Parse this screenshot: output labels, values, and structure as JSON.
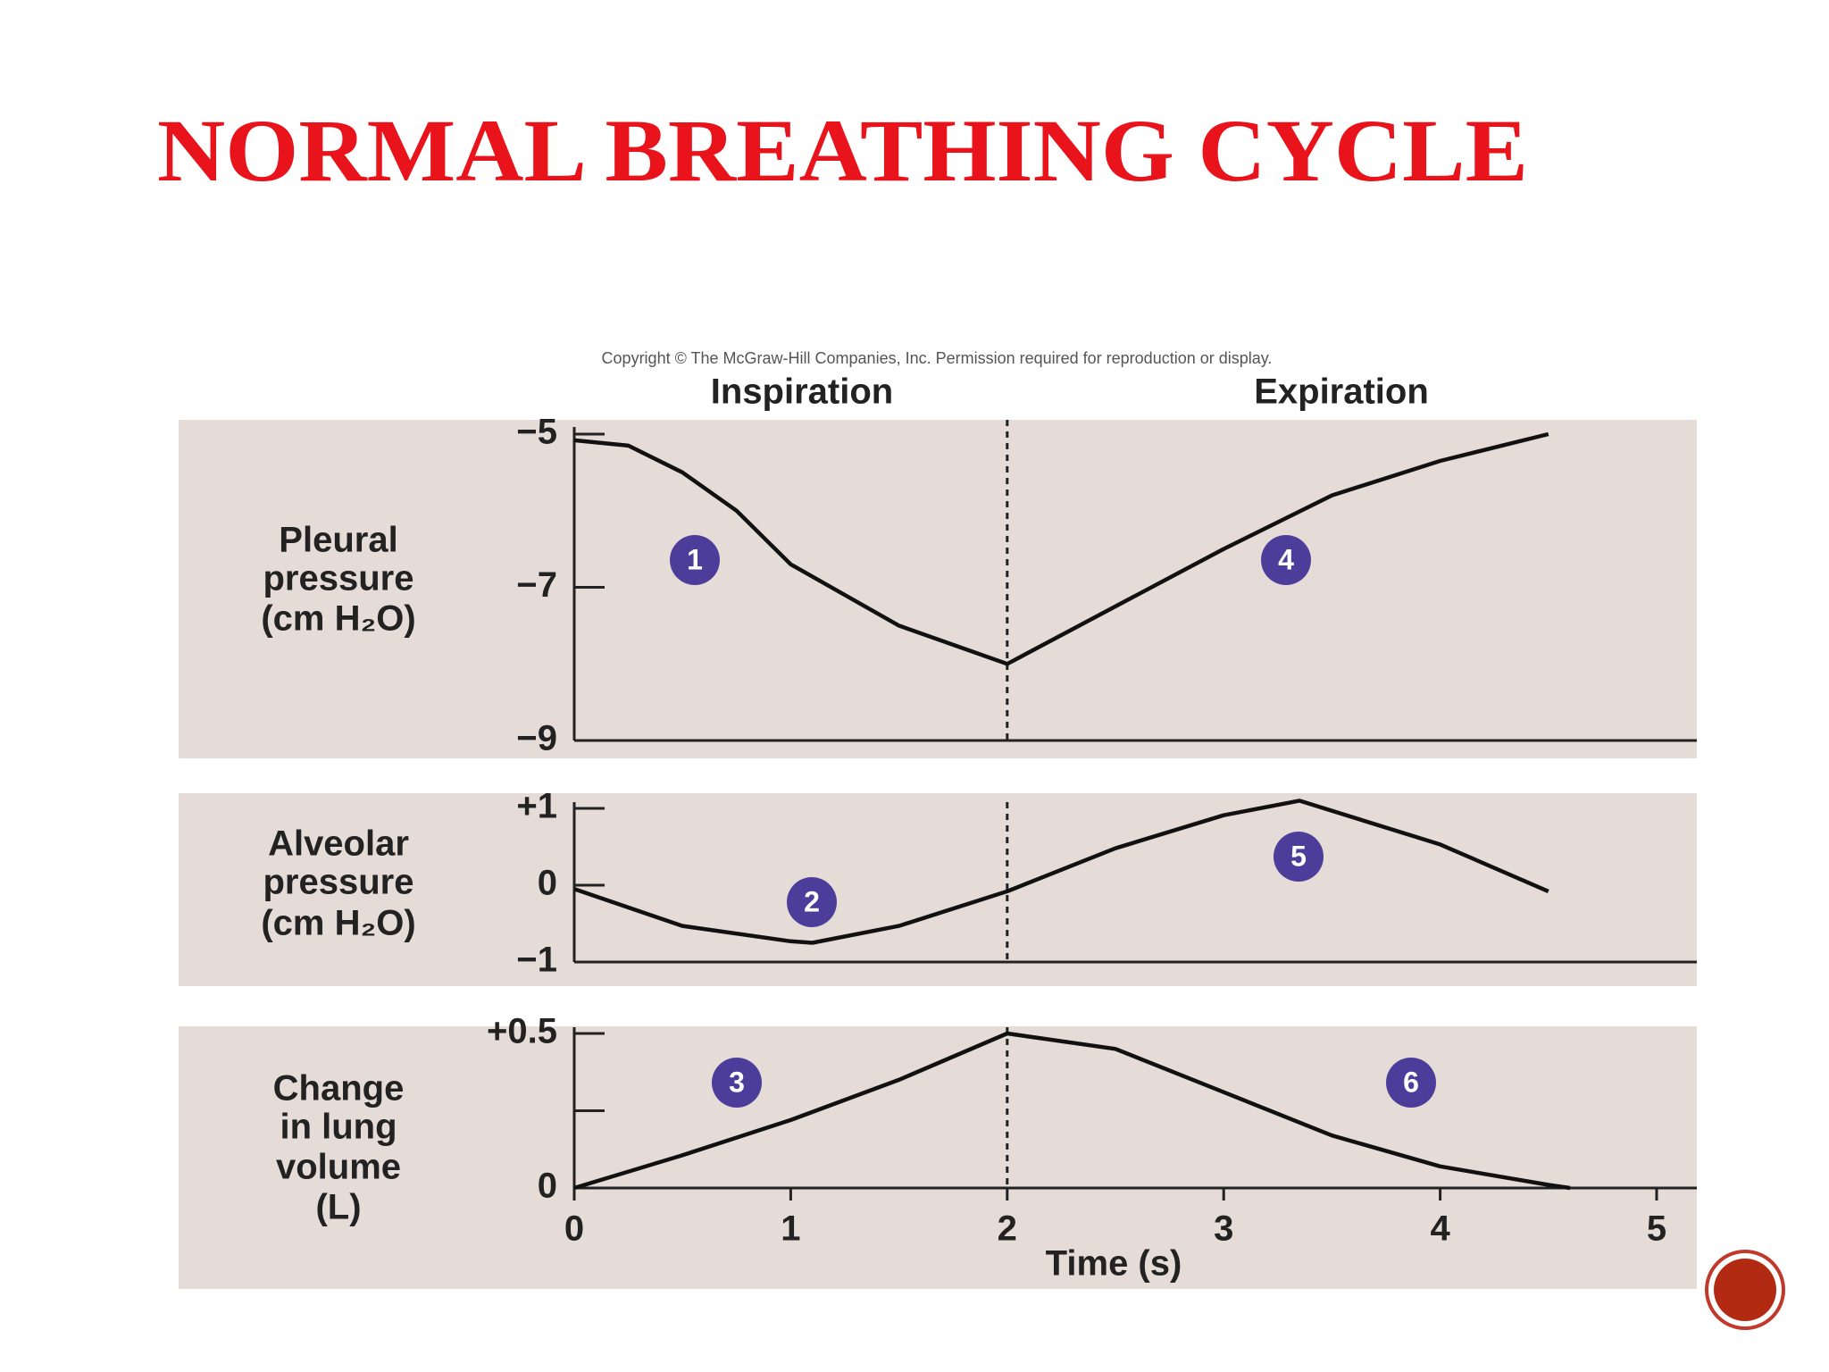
{
  "title": "NORMAL BREATHING CYCLE",
  "copyright": "Copyright © The McGraw-Hill Companies, Inc. Permission required for reproduction or display.",
  "phases": [
    "Inspiration",
    "Expiration"
  ],
  "chart_data": [
    {
      "type": "line",
      "ylabel": [
        "Pleural",
        "pressure",
        "(cm H₂O)"
      ],
      "color": "#111111",
      "background": "#e5dcd8",
      "x": [
        0,
        0.25,
        0.5,
        0.75,
        1,
        1.5,
        2,
        2.5,
        3,
        3.5,
        4,
        4.5
      ],
      "values": [
        -5.08,
        -5.15,
        -5.5,
        -6.0,
        -6.7,
        -7.5,
        -8.0,
        -7.25,
        -6.5,
        -5.8,
        -5.35,
        -5.0
      ],
      "xlim": [
        0,
        5
      ],
      "ylim": [
        -9,
        -5
      ],
      "yticks": [
        {
          "value": -5,
          "label": "−5"
        },
        {
          "value": -7,
          "label": "−7"
        },
        {
          "value": -9,
          "label": "−9"
        }
      ],
      "vline": 2,
      "annotations": [
        "1",
        "4"
      ]
    },
    {
      "type": "line",
      "ylabel": [
        "Alveolar",
        "pressure",
        "(cm H₂O)"
      ],
      "color": "#111111",
      "background": "#e5dcd8",
      "x": [
        0,
        0.5,
        1,
        1.1,
        1.5,
        2,
        2.5,
        3,
        3.35,
        4,
        4.5
      ],
      "values": [
        -0.05,
        -0.53,
        -0.73,
        -0.75,
        -0.53,
        -0.08,
        0.48,
        0.91,
        1.1,
        0.53,
        -0.08
      ],
      "xlim": [
        0,
        5
      ],
      "ylim": [
        -1,
        1
      ],
      "yticks": [
        {
          "value": 1,
          "label": "+1"
        },
        0,
        {
          "value": -1,
          "label": "−1"
        }
      ],
      "vline": 2,
      "annotations": [
        "2",
        "5"
      ]
    },
    {
      "type": "line",
      "ylabel": [
        "Change",
        "in lung",
        "volume",
        "(L)"
      ],
      "color": "#111111",
      "background": "#e5dcd8",
      "x": [
        0,
        0.5,
        1,
        1.5,
        2,
        2.5,
        3,
        3.5,
        4,
        4.5,
        4.6
      ],
      "values": [
        0,
        0.106,
        0.22,
        0.35,
        0.5,
        0.45,
        0.31,
        0.17,
        0.07,
        0.01,
        0
      ],
      "xlim": [
        0,
        5
      ],
      "ylim": [
        0,
        0.5
      ],
      "yticks": [
        {
          "value": 0.5,
          "label": "+0.5"
        },
        {
          "value": 0.25,
          "label": null
        },
        0
      ],
      "xticks": [
        0,
        1,
        2,
        3,
        4,
        5
      ],
      "xlabel": "Time (s)",
      "vline": 2,
      "annotations": [
        "3",
        "6"
      ]
    }
  ]
}
